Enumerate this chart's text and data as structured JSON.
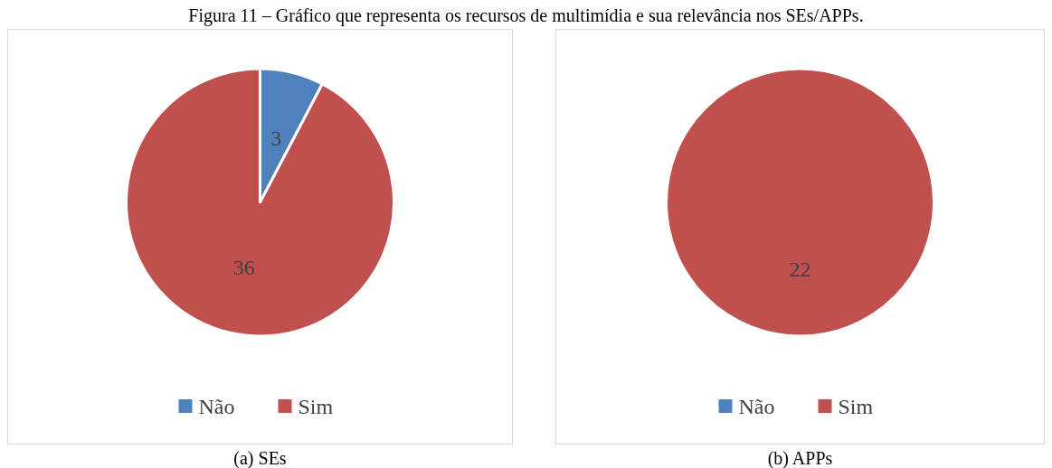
{
  "chart_data": [
    {
      "type": "pie",
      "title": "Figura 11 – Gráfico que representa os recursos de multimídia e sua relevância nos SEs/APPs.",
      "categories": [
        "Não",
        "Sim"
      ],
      "values": [
        3,
        36
      ],
      "colors": [
        "#4f81bd",
        "#c0504d"
      ],
      "data_labels": true,
      "legend": "bottom",
      "annotations": [
        "(a) SEs"
      ]
    },
    {
      "type": "pie",
      "categories": [
        "Não",
        "Sim"
      ],
      "values": [
        0,
        22
      ],
      "colors": [
        "#4f81bd",
        "#c0504d"
      ],
      "value_labels": [
        null,
        "22"
      ],
      "legend": "bottom",
      "annotations": [
        "(b) APPs"
      ]
    }
  ]
}
